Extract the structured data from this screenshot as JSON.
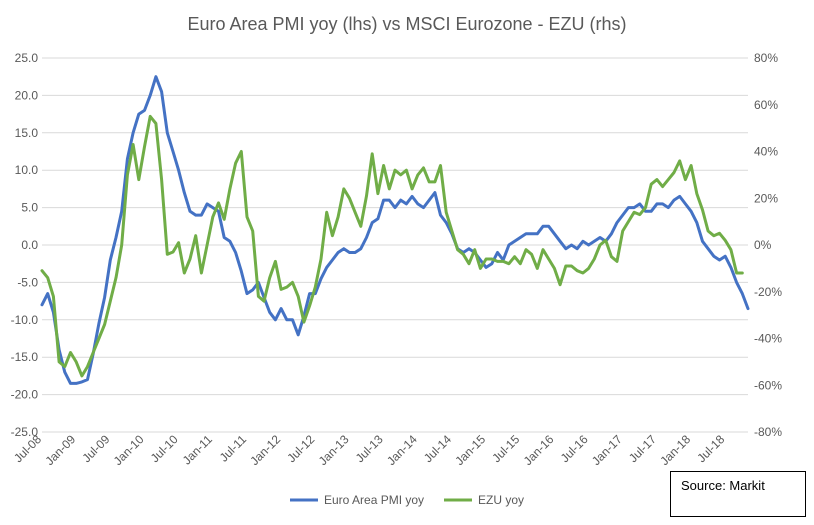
{
  "chart_data": {
    "type": "line",
    "title": "Euro Area PMI yoy (lhs) vs MSCI Eurozone - EZU (rhs)",
    "x_start": "2008-07",
    "x_end": "2018-11",
    "x_tick_labels": [
      "Jul-08",
      "Jan-09",
      "Jul-09",
      "Jan-10",
      "Jul-10",
      "Jan-11",
      "Jul-11",
      "Jan-12",
      "Jul-12",
      "Jan-13",
      "Jul-13",
      "Jan-14",
      "Jul-14",
      "Jan-15",
      "Jul-15",
      "Jan-16",
      "Jul-16",
      "Jan-17",
      "Jul-17",
      "Jan-18",
      "Jul-18"
    ],
    "y_left": {
      "min": -25,
      "max": 25,
      "step": 5,
      "tick_labels": [
        "25.0",
        "20.0",
        "15.0",
        "10.0",
        "5.0",
        "0.0",
        "-5.0",
        "-10.0",
        "-15.0",
        "-20.0",
        "-25.0"
      ]
    },
    "y_right": {
      "min": -0.8,
      "max": 0.8,
      "step": 0.2,
      "tick_labels": [
        "80%",
        "60%",
        "40%",
        "20%",
        "0%",
        "-20%",
        "-40%",
        "-60%",
        "-80%"
      ]
    },
    "grid": true,
    "legend_position": "bottom",
    "series": [
      {
        "name": "Euro Area PMI yoy",
        "axis": "left",
        "color": "#4472C4",
        "points": [
          [
            "2008-07",
            -8.0
          ],
          [
            "2008-08",
            -6.5
          ],
          [
            "2008-09",
            -9.0
          ],
          [
            "2008-10",
            -14.0
          ],
          [
            "2008-11",
            -17.0
          ],
          [
            "2008-12",
            -18.5
          ],
          [
            "2009-01",
            -18.5
          ],
          [
            "2009-02",
            -18.3
          ],
          [
            "2009-03",
            -18.0
          ],
          [
            "2009-04",
            -14.5
          ],
          [
            "2009-05",
            -10.5
          ],
          [
            "2009-06",
            -7.0
          ],
          [
            "2009-07",
            -2.0
          ],
          [
            "2009-08",
            1.0
          ],
          [
            "2009-09",
            4.5
          ],
          [
            "2009-10",
            11.5
          ],
          [
            "2009-11",
            15.0
          ],
          [
            "2009-12",
            17.5
          ],
          [
            "2010-01",
            18.0
          ],
          [
            "2010-02",
            20.0
          ],
          [
            "2010-03",
            22.5
          ],
          [
            "2010-04",
            20.5
          ],
          [
            "2010-05",
            15.0
          ],
          [
            "2010-06",
            12.5
          ],
          [
            "2010-07",
            10.0
          ],
          [
            "2010-08",
            7.0
          ],
          [
            "2010-09",
            4.5
          ],
          [
            "2010-10",
            4.0
          ],
          [
            "2010-11",
            4.0
          ],
          [
            "2010-12",
            5.5
          ],
          [
            "2011-01",
            5.0
          ],
          [
            "2011-02",
            4.5
          ],
          [
            "2011-03",
            1.0
          ],
          [
            "2011-04",
            0.5
          ],
          [
            "2011-05",
            -1.0
          ],
          [
            "2011-06",
            -3.5
          ],
          [
            "2011-07",
            -6.5
          ],
          [
            "2011-08",
            -6.0
          ],
          [
            "2011-09",
            -5.0
          ],
          [
            "2011-10",
            -7.0
          ],
          [
            "2011-11",
            -9.0
          ],
          [
            "2011-12",
            -10.0
          ],
          [
            "2012-01",
            -8.5
          ],
          [
            "2012-02",
            -10.0
          ],
          [
            "2012-03",
            -10.0
          ],
          [
            "2012-04",
            -12.0
          ],
          [
            "2012-05",
            -9.5
          ],
          [
            "2012-06",
            -6.5
          ],
          [
            "2012-07",
            -6.5
          ],
          [
            "2012-08",
            -4.5
          ],
          [
            "2012-09",
            -3.0
          ],
          [
            "2012-10",
            -2.0
          ],
          [
            "2012-11",
            -1.0
          ],
          [
            "2012-12",
            -0.5
          ],
          [
            "2013-01",
            -1.0
          ],
          [
            "2013-02",
            -1.0
          ],
          [
            "2013-03",
            -0.5
          ],
          [
            "2013-04",
            1.0
          ],
          [
            "2013-05",
            3.0
          ],
          [
            "2013-06",
            3.5
          ],
          [
            "2013-07",
            6.0
          ],
          [
            "2013-08",
            6.0
          ],
          [
            "2013-09",
            5.0
          ],
          [
            "2013-10",
            6.0
          ],
          [
            "2013-11",
            5.5
          ],
          [
            "2013-12",
            6.5
          ],
          [
            "2014-01",
            5.5
          ],
          [
            "2014-02",
            5.0
          ],
          [
            "2014-03",
            6.0
          ],
          [
            "2014-04",
            7.0
          ],
          [
            "2014-05",
            4.0
          ],
          [
            "2014-06",
            3.0
          ],
          [
            "2014-07",
            1.5
          ],
          [
            "2014-08",
            -0.5
          ],
          [
            "2014-09",
            -1.0
          ],
          [
            "2014-10",
            -0.5
          ],
          [
            "2014-11",
            -1.0
          ],
          [
            "2014-12",
            -2.0
          ],
          [
            "2015-01",
            -3.0
          ],
          [
            "2015-02",
            -2.5
          ],
          [
            "2015-03",
            -1.0
          ],
          [
            "2015-04",
            -2.0
          ],
          [
            "2015-05",
            0.0
          ],
          [
            "2015-06",
            0.5
          ],
          [
            "2015-07",
            1.0
          ],
          [
            "2015-08",
            1.5
          ],
          [
            "2015-09",
            1.5
          ],
          [
            "2015-10",
            1.5
          ],
          [
            "2015-11",
            2.5
          ],
          [
            "2015-12",
            2.5
          ],
          [
            "2016-01",
            1.5
          ],
          [
            "2016-02",
            0.5
          ],
          [
            "2016-03",
            -0.5
          ],
          [
            "2016-04",
            0.0
          ],
          [
            "2016-05",
            -0.5
          ],
          [
            "2016-06",
            0.5
          ],
          [
            "2016-07",
            0.0
          ],
          [
            "2016-08",
            0.5
          ],
          [
            "2016-09",
            1.0
          ],
          [
            "2016-10",
            0.5
          ],
          [
            "2016-11",
            1.5
          ],
          [
            "2016-12",
            3.0
          ],
          [
            "2017-01",
            4.0
          ],
          [
            "2017-02",
            5.0
          ],
          [
            "2017-03",
            5.0
          ],
          [
            "2017-04",
            5.5
          ],
          [
            "2017-05",
            4.5
          ],
          [
            "2017-06",
            4.5
          ],
          [
            "2017-07",
            5.5
          ],
          [
            "2017-08",
            5.5
          ],
          [
            "2017-09",
            5.0
          ],
          [
            "2017-10",
            6.0
          ],
          [
            "2017-11",
            6.5
          ],
          [
            "2017-12",
            5.5
          ],
          [
            "2018-01",
            4.5
          ],
          [
            "2018-02",
            3.0
          ],
          [
            "2018-03",
            0.5
          ],
          [
            "2018-04",
            -0.5
          ],
          [
            "2018-05",
            -1.5
          ],
          [
            "2018-06",
            -2.0
          ],
          [
            "2018-07",
            -1.5
          ],
          [
            "2018-08",
            -3.0
          ],
          [
            "2018-09",
            -5.0
          ],
          [
            "2018-10",
            -6.5
          ],
          [
            "2018-11",
            -8.5
          ]
        ]
      },
      {
        "name": "EZU yoy",
        "axis": "right",
        "color": "#70AD47",
        "points": [
          [
            "2008-07",
            -0.11
          ],
          [
            "2008-08",
            -0.14
          ],
          [
            "2008-09",
            -0.22
          ],
          [
            "2008-10",
            -0.5
          ],
          [
            "2008-11",
            -0.52
          ],
          [
            "2008-12",
            -0.46
          ],
          [
            "2009-01",
            -0.5
          ],
          [
            "2009-02",
            -0.56
          ],
          [
            "2009-03",
            -0.52
          ],
          [
            "2009-04",
            -0.46
          ],
          [
            "2009-05",
            -0.4
          ],
          [
            "2009-06",
            -0.34
          ],
          [
            "2009-07",
            -0.24
          ],
          [
            "2009-08",
            -0.14
          ],
          [
            "2009-09",
            0.0
          ],
          [
            "2009-10",
            0.3
          ],
          [
            "2009-11",
            0.43
          ],
          [
            "2009-12",
            0.28
          ],
          [
            "2010-01",
            0.42
          ],
          [
            "2010-02",
            0.55
          ],
          [
            "2010-03",
            0.52
          ],
          [
            "2010-04",
            0.28
          ],
          [
            "2010-05",
            -0.04
          ],
          [
            "2010-06",
            -0.03
          ],
          [
            "2010-07",
            0.01
          ],
          [
            "2010-08",
            -0.12
          ],
          [
            "2010-09",
            -0.06
          ],
          [
            "2010-10",
            0.04
          ],
          [
            "2010-11",
            -0.12
          ],
          [
            "2010-12",
            0.0
          ],
          [
            "2011-01",
            0.12
          ],
          [
            "2011-02",
            0.18
          ],
          [
            "2011-03",
            0.11
          ],
          [
            "2011-04",
            0.24
          ],
          [
            "2011-05",
            0.35
          ],
          [
            "2011-06",
            0.4
          ],
          [
            "2011-07",
            0.12
          ],
          [
            "2011-08",
            0.06
          ],
          [
            "2011-09",
            -0.22
          ],
          [
            "2011-10",
            -0.24
          ],
          [
            "2011-11",
            -0.14
          ],
          [
            "2011-12",
            -0.07
          ],
          [
            "2012-01",
            -0.19
          ],
          [
            "2012-02",
            -0.18
          ],
          [
            "2012-03",
            -0.16
          ],
          [
            "2012-04",
            -0.22
          ],
          [
            "2012-05",
            -0.33
          ],
          [
            "2012-06",
            -0.26
          ],
          [
            "2012-07",
            -0.18
          ],
          [
            "2012-08",
            -0.06
          ],
          [
            "2012-09",
            0.14
          ],
          [
            "2012-10",
            0.04
          ],
          [
            "2012-11",
            0.12
          ],
          [
            "2012-12",
            0.24
          ],
          [
            "2013-01",
            0.2
          ],
          [
            "2013-02",
            0.14
          ],
          [
            "2013-03",
            0.08
          ],
          [
            "2013-04",
            0.21
          ],
          [
            "2013-05",
            0.39
          ],
          [
            "2013-06",
            0.22
          ],
          [
            "2013-07",
            0.34
          ],
          [
            "2013-08",
            0.24
          ],
          [
            "2013-09",
            0.32
          ],
          [
            "2013-10",
            0.3
          ],
          [
            "2013-11",
            0.32
          ],
          [
            "2013-12",
            0.24
          ],
          [
            "2014-01",
            0.3
          ],
          [
            "2014-02",
            0.33
          ],
          [
            "2014-03",
            0.27
          ],
          [
            "2014-04",
            0.27
          ],
          [
            "2014-05",
            0.34
          ],
          [
            "2014-06",
            0.14
          ],
          [
            "2014-07",
            0.06
          ],
          [
            "2014-08",
            -0.02
          ],
          [
            "2014-09",
            -0.04
          ],
          [
            "2014-10",
            -0.08
          ],
          [
            "2014-11",
            -0.02
          ],
          [
            "2014-12",
            -0.1
          ],
          [
            "2015-01",
            -0.06
          ],
          [
            "2015-02",
            -0.06
          ],
          [
            "2015-03",
            -0.07
          ],
          [
            "2015-04",
            -0.07
          ],
          [
            "2015-05",
            -0.08
          ],
          [
            "2015-06",
            -0.05
          ],
          [
            "2015-07",
            -0.08
          ],
          [
            "2015-08",
            -0.02
          ],
          [
            "2015-09",
            -0.04
          ],
          [
            "2015-10",
            -0.1
          ],
          [
            "2015-11",
            -0.02
          ],
          [
            "2015-12",
            -0.06
          ],
          [
            "2016-01",
            -0.1
          ],
          [
            "2016-02",
            -0.17
          ],
          [
            "2016-03",
            -0.09
          ],
          [
            "2016-04",
            -0.09
          ],
          [
            "2016-05",
            -0.11
          ],
          [
            "2016-06",
            -0.12
          ],
          [
            "2016-07",
            -0.1
          ],
          [
            "2016-08",
            -0.06
          ],
          [
            "2016-09",
            0.0
          ],
          [
            "2016-10",
            0.02
          ],
          [
            "2016-11",
            -0.05
          ],
          [
            "2016-12",
            -0.07
          ],
          [
            "2017-01",
            0.06
          ],
          [
            "2017-02",
            0.1
          ],
          [
            "2017-03",
            0.14
          ],
          [
            "2017-04",
            0.13
          ],
          [
            "2017-05",
            0.16
          ],
          [
            "2017-06",
            0.26
          ],
          [
            "2017-07",
            0.28
          ],
          [
            "2017-08",
            0.25
          ],
          [
            "2017-09",
            0.28
          ],
          [
            "2017-10",
            0.31
          ],
          [
            "2017-11",
            0.36
          ],
          [
            "2017-12",
            0.28
          ],
          [
            "2018-01",
            0.34
          ],
          [
            "2018-02",
            0.22
          ],
          [
            "2018-03",
            0.15
          ],
          [
            "2018-04",
            0.06
          ],
          [
            "2018-05",
            0.04
          ],
          [
            "2018-06",
            0.05
          ],
          [
            "2018-07",
            0.02
          ],
          [
            "2018-08",
            -0.02
          ],
          [
            "2018-09",
            -0.12
          ],
          [
            "2018-10",
            -0.12
          ]
        ]
      }
    ]
  },
  "source_note": "Source: Markit"
}
